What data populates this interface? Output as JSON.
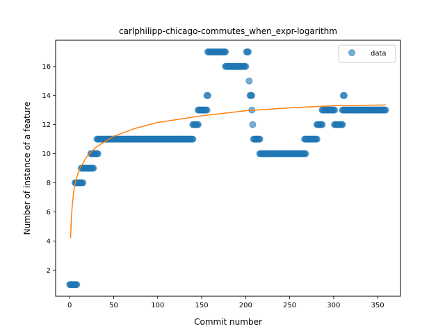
{
  "chart_data": {
    "type": "scatter",
    "title": "carlphilipp-chicago-commutes_when_expr-logarithm",
    "xlabel": "Commit number",
    "ylabel": "Number of instance of a feature",
    "xlim": [
      -16,
      376
    ],
    "ylim": [
      0.2,
      17.8
    ],
    "xticks": [
      0,
      50,
      100,
      150,
      200,
      250,
      300,
      350
    ],
    "yticks": [
      2,
      4,
      6,
      8,
      10,
      12,
      14,
      16
    ],
    "legend": {
      "position": "top-right",
      "entries": [
        "data"
      ]
    },
    "grid": false,
    "colors": {
      "data": "#1f77b4",
      "fit": "#ff7f0e"
    },
    "series": [
      {
        "name": "data",
        "kind": "scatter",
        "runs": [
          {
            "x_start": 0,
            "x_end": 8,
            "y": 1
          },
          {
            "x_start": 6,
            "x_end": 15,
            "y": 8
          },
          {
            "x_start": 13,
            "x_end": 27,
            "y": 9
          },
          {
            "x_start": 24,
            "x_end": 32,
            "y": 10
          },
          {
            "x_start": 31,
            "x_end": 140,
            "y": 11
          },
          {
            "x_start": 140,
            "x_end": 146,
            "y": 12
          },
          {
            "x_start": 146,
            "x_end": 156,
            "y": 13
          },
          {
            "x_start": 156,
            "x_end": 157,
            "y": 14
          },
          {
            "x_start": 157,
            "x_end": 177,
            "y": 17
          },
          {
            "x_start": 177,
            "x_end": 200,
            "y": 16
          },
          {
            "x_start": 201,
            "x_end": 203,
            "y": 17
          },
          {
            "x_start": 204,
            "x_end": 204,
            "y": 15
          },
          {
            "x_start": 205,
            "x_end": 207,
            "y": 14
          },
          {
            "x_start": 207,
            "x_end": 207,
            "y": 13
          },
          {
            "x_start": 208,
            "x_end": 208,
            "y": 12
          },
          {
            "x_start": 209,
            "x_end": 216,
            "y": 11
          },
          {
            "x_start": 216,
            "x_end": 268,
            "y": 10
          },
          {
            "x_start": 267,
            "x_end": 281,
            "y": 11
          },
          {
            "x_start": 281,
            "x_end": 287,
            "y": 12
          },
          {
            "x_start": 287,
            "x_end": 301,
            "y": 13
          },
          {
            "x_start": 301,
            "x_end": 310,
            "y": 12
          },
          {
            "x_start": 311,
            "x_end": 312,
            "y": 14
          },
          {
            "x_start": 310,
            "x_end": 359,
            "y": 13
          }
        ]
      },
      {
        "name": "",
        "kind": "line",
        "x": [
          1,
          2,
          3,
          5,
          8,
          12,
          20,
          30,
          50,
          75,
          100,
          150,
          200,
          250,
          300,
          359
        ],
        "y": [
          4.2,
          5.7,
          6.5,
          7.6,
          8.4,
          9.05,
          9.85,
          10.45,
          11.2,
          11.75,
          12.15,
          12.6,
          12.95,
          13.15,
          13.3,
          13.35
        ]
      }
    ]
  }
}
